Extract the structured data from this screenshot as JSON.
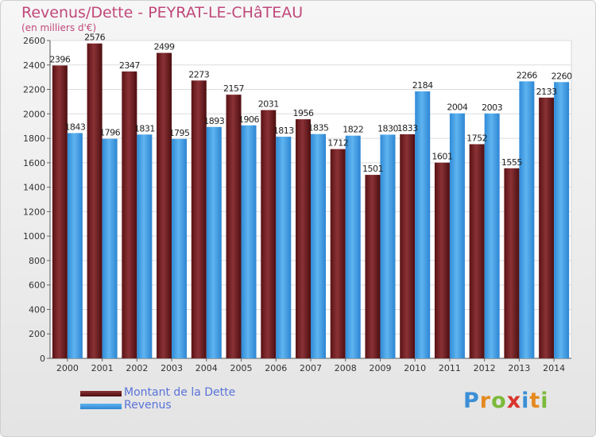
{
  "chart_data": {
    "type": "bar",
    "title": "Revenus/Dette - PEYRAT-LE-CHâTEAU",
    "subtitle": "(en milliers d'€)",
    "categories": [
      "2000",
      "2001",
      "2002",
      "2003",
      "2004",
      "2005",
      "2006",
      "2007",
      "2008",
      "2009",
      "2010",
      "2011",
      "2012",
      "2013",
      "2014"
    ],
    "series": [
      {
        "name": "Montant de la Dette",
        "color": "#6e1a1c",
        "values": [
          2396,
          2576,
          2347,
          2499,
          2273,
          2157,
          2031,
          1956,
          1712,
          1501,
          1833,
          1601,
          1752,
          1555,
          2133
        ],
        "labels": [
          "2396",
          "2576",
          "2347",
          "2499",
          "2273",
          "2157",
          "2031",
          "1956",
          "1712",
          "1501",
          "1833",
          "1601",
          "1752",
          "1555",
          "2133"
        ]
      },
      {
        "name": "Revenus",
        "color": "#3f9ee6",
        "values": [
          1843,
          1796,
          1831,
          1795,
          1893,
          1906,
          1813,
          1835,
          1822,
          1830,
          2184,
          2004,
          2003,
          2266,
          2260
        ],
        "labels": [
          "1843",
          "1796",
          "1831",
          "1795",
          "1893",
          "1906",
          "1813",
          "1835",
          "1822",
          "1830",
          "2184",
          "2004",
          "2003",
          "2266",
          "2260"
        ]
      }
    ],
    "ylim": [
      0,
      2600
    ],
    "yticks": [
      0,
      200,
      400,
      600,
      800,
      1000,
      1200,
      1400,
      1600,
      1800,
      2000,
      2200,
      2400,
      2600
    ],
    "grid": true,
    "legend_position": "bottom-left"
  },
  "logo": {
    "letters": [
      "P",
      "r",
      "o",
      "x",
      "i",
      "t",
      "i"
    ],
    "colors": [
      "#3a8fd6",
      "#e58a1f",
      "#7cba3a",
      "#d8342c",
      "#3a8fd6",
      "#e58a1f",
      "#7cba3a"
    ]
  }
}
